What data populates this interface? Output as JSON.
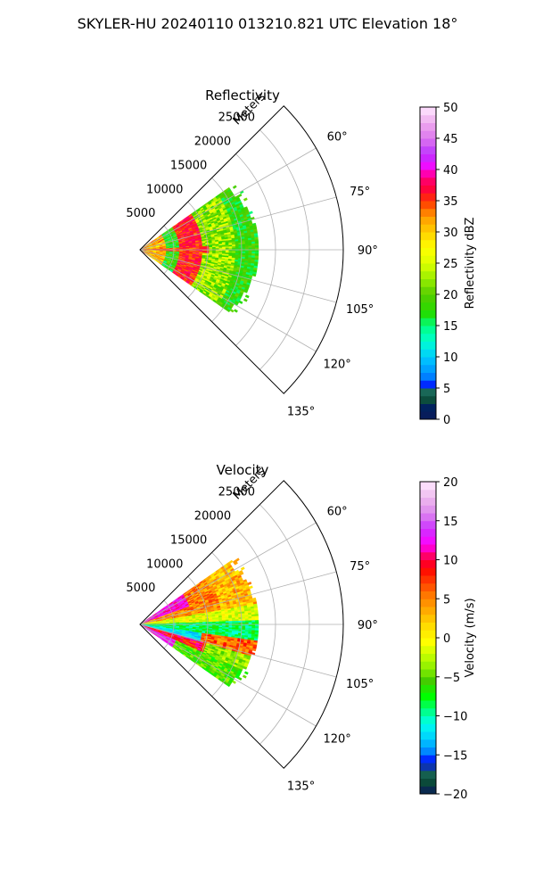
{
  "figure": {
    "title": "SKYLER-HU  20240110  013210.821 UTC Elevation 18°"
  },
  "chart_data": [
    {
      "type": "heatmap",
      "projection": "polar-sector",
      "title": "Reflectivity",
      "radial_label": "Meters",
      "radial_ticks": [
        5000,
        10000,
        15000,
        20000,
        25000
      ],
      "radial_tick_labels": [
        "5000",
        "10000",
        "15000",
        "20000",
        "25000"
      ],
      "radial_range": [
        0,
        30000
      ],
      "azimuth_range_deg": [
        45,
        135
      ],
      "azimuth_ticks_deg": [
        60,
        75,
        90,
        105,
        120,
        135
      ],
      "azimuth_tick_labels": [
        "60°",
        "75°",
        "90°",
        "105°",
        "120°",
        "135°"
      ],
      "data_azimuth_range_deg": [
        55,
        125
      ],
      "data_max_range": 17500,
      "grid": true,
      "colorbar": {
        "label": "Reflectivity dBZ",
        "range": [
          0,
          50
        ],
        "ticks": [
          0,
          5,
          10,
          15,
          20,
          25,
          30,
          35,
          40,
          45,
          50
        ],
        "tick_labels": [
          "0",
          "5",
          "10",
          "15",
          "20",
          "25",
          "30",
          "35",
          "40",
          "45",
          "50"
        ]
      }
    },
    {
      "type": "heatmap",
      "projection": "polar-sector",
      "title": "Velocity",
      "radial_label": "Meters",
      "radial_ticks": [
        5000,
        10000,
        15000,
        20000,
        25000
      ],
      "radial_tick_labels": [
        "5000",
        "10000",
        "15000",
        "20000",
        "25000"
      ],
      "radial_range": [
        0,
        30000
      ],
      "azimuth_range_deg": [
        45,
        135
      ],
      "azimuth_ticks_deg": [
        60,
        75,
        90,
        105,
        120,
        135
      ],
      "azimuth_tick_labels": [
        "60°",
        "75°",
        "90°",
        "105°",
        "120°",
        "135°"
      ],
      "data_azimuth_range_deg": [
        55,
        125
      ],
      "data_max_range": 17500,
      "grid": true,
      "colorbar": {
        "label": "Velocity (m/s)",
        "range": [
          -20,
          20
        ],
        "ticks": [
          -20,
          -15,
          -10,
          -5,
          0,
          5,
          10,
          15,
          20
        ],
        "tick_labels": [
          "−20",
          "−15",
          "−10",
          "−5",
          "0",
          "5",
          "10",
          "15",
          "20"
        ]
      }
    }
  ]
}
